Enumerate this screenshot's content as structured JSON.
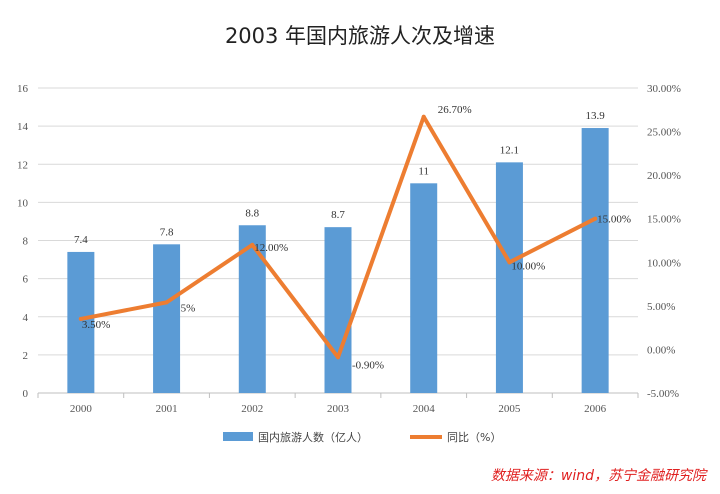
{
  "chart_data": {
    "type": "bar+line",
    "title": "2003 年国内旅游人次及增速",
    "categories": [
      "2000",
      "2001",
      "2002",
      "2003",
      "2004",
      "2005",
      "2006"
    ],
    "series": [
      {
        "name": "国内旅游人数（亿人）",
        "type": "bar",
        "axis": "left",
        "color": "#5B9BD5",
        "values": [
          7.4,
          7.8,
          8.8,
          8.7,
          11,
          12.1,
          13.9
        ],
        "labels": [
          "7.4",
          "7.8",
          "8.8",
          "8.7",
          "11",
          "12.1",
          "13.9"
        ]
      },
      {
        "name": "同比（%）",
        "type": "line",
        "axis": "right",
        "color": "#ED7D31",
        "values": [
          3.5,
          5.4,
          12.0,
          -0.9,
          26.7,
          10.0,
          15.0
        ],
        "labels": [
          "3.50%",
          "5%",
          "12.00%",
          "-0.90%",
          "26.70%",
          "10.00%",
          "15.00%"
        ]
      }
    ],
    "y_left": {
      "min": 0,
      "max": 16,
      "step": 2,
      "ticks": [
        "0",
        "2",
        "4",
        "6",
        "8",
        "10",
        "12",
        "14",
        "16"
      ]
    },
    "y_right": {
      "min": -5,
      "max": 30,
      "step": 5,
      "ticks": [
        "-5.00%",
        "0.00%",
        "5.00%",
        "10.00%",
        "15.00%",
        "20.00%",
        "25.00%",
        "30.00%"
      ]
    },
    "grid": true,
    "legend_position": "bottom"
  },
  "source_note": "数据来源：wind，苏宁金融研究院"
}
